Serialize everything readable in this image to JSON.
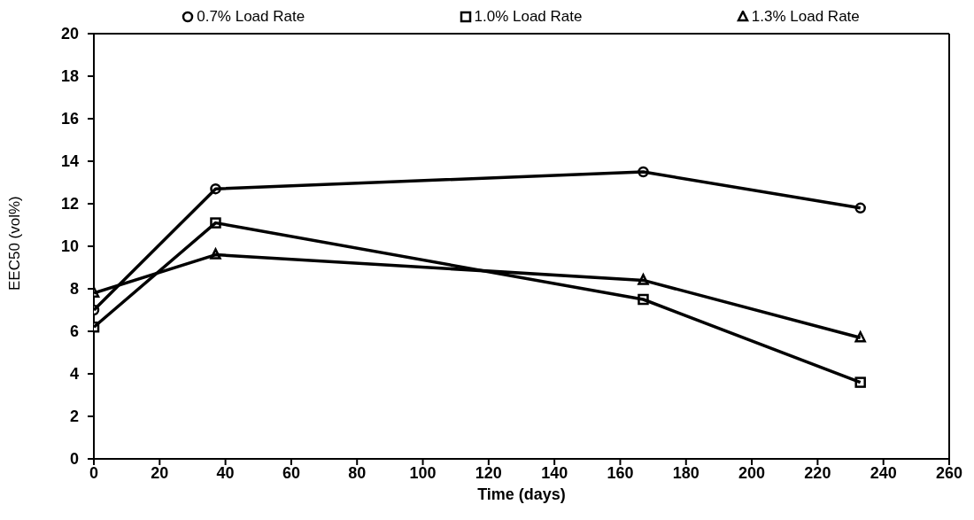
{
  "chart_data": {
    "type": "line",
    "xlabel": "Time (days)",
    "ylabel": "EEC50 (vol%)",
    "x": [
      0,
      37,
      167,
      233
    ],
    "series": [
      {
        "name": "0.7% Load Rate",
        "color": "#000000",
        "marker": "circle",
        "values": [
          7.0,
          12.7,
          13.5,
          11.8
        ]
      },
      {
        "name": "1.0% Load Rate",
        "color": "#000000",
        "marker": "square",
        "values": [
          6.2,
          11.1,
          7.5,
          3.6
        ]
      },
      {
        "name": "1.3% Load Rate",
        "color": "#000000",
        "marker": "triangle",
        "values": [
          7.8,
          9.6,
          8.4,
          5.7
        ]
      }
    ],
    "xlim": [
      0,
      260
    ],
    "xticks": [
      0,
      20,
      40,
      60,
      80,
      100,
      120,
      140,
      160,
      180,
      200,
      220,
      240,
      260
    ],
    "ylim": [
      0,
      20
    ],
    "yticks": [
      0,
      2,
      4,
      6,
      8,
      10,
      12,
      14,
      16,
      18,
      20
    ],
    "grid": false,
    "legend": "top",
    "line_style": "solid"
  }
}
